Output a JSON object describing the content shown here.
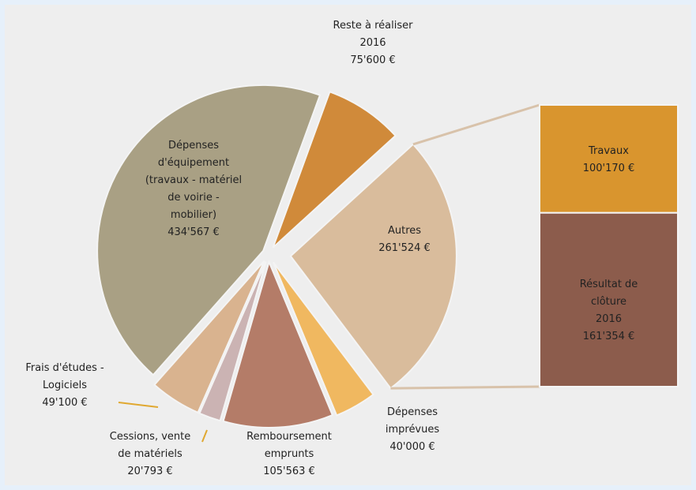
{
  "chart_data": {
    "type": "pie",
    "categories": [
      "Reste à réaliser\n2016",
      "Autres",
      "Dépenses\nimprévues",
      "Remboursement\nemprunts",
      "Cessions, vente\nde matériels",
      "Frais d'études -\nLogiciels",
      "Dépenses\nd'équipement\n(travaux - matériel\nde voirie -\nmobilier)"
    ],
    "values": [
      75600,
      261524,
      40000,
      105563,
      20793,
      49100,
      434567
    ],
    "value_labels": [
      "75'600 €",
      "261'524 €",
      "40'000 €",
      "105'563 €",
      "20'793 €",
      "49'100 €",
      "434'567 €"
    ],
    "colors": [
      "#d08a3a",
      "#d9bc9c",
      "#f0b860",
      "#b47c68",
      "#cbb3b3",
      "#d9b38f",
      "#a9a084"
    ],
    "bar": {
      "categories": [
        "Travaux",
        "Résultat de clôture\n2016"
      ],
      "values": [
        100170,
        161354
      ],
      "value_labels": [
        "100'170 €",
        "161'354 €"
      ],
      "colors": [
        "#d9952e",
        "#8c5c4c"
      ]
    }
  }
}
